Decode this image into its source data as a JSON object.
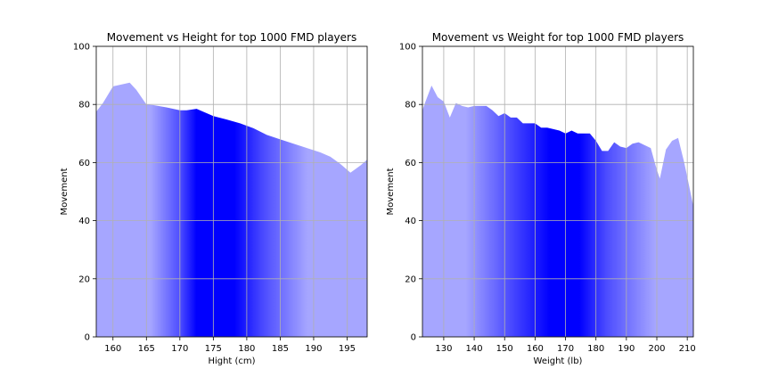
{
  "chart_data": [
    {
      "type": "area",
      "title": "Movement vs Height for top 1000 FMD players",
      "xlabel": "Hight (cm)",
      "ylabel": "Movement",
      "xlim": [
        157.5,
        198
      ],
      "ylim": [
        0,
        100
      ],
      "xticks": [
        160,
        165,
        170,
        175,
        180,
        185,
        190,
        195
      ],
      "yticks": [
        0,
        20,
        40,
        60,
        80,
        100
      ],
      "grid": true,
      "fill_color": "#0000ff",
      "x": [
        157.5,
        158.5,
        160,
        162.5,
        163.5,
        165,
        166,
        168,
        170,
        171,
        172.5,
        173.5,
        175,
        177,
        179,
        181,
        183,
        185,
        187,
        189,
        191,
        192.5,
        194,
        195.5,
        197,
        198
      ],
      "values": [
        77.5,
        80.5,
        86.2,
        87.5,
        85,
        80,
        79.8,
        79,
        78,
        78,
        78.5,
        77.5,
        76,
        74.8,
        73.5,
        71.8,
        69.5,
        68,
        66.5,
        65,
        63.5,
        62,
        59.5,
        56.5,
        59,
        61
      ]
    },
    {
      "type": "area",
      "title": "Movement vs Weight for top 1000 FMD players",
      "xlabel": "Weight (lb)",
      "ylabel": "Movement",
      "xlim": [
        123,
        212
      ],
      "ylim": [
        0,
        100
      ],
      "xticks": [
        130,
        140,
        150,
        160,
        170,
        180,
        190,
        200,
        210
      ],
      "yticks": [
        0,
        20,
        40,
        60,
        80,
        100
      ],
      "grid": true,
      "fill_color": "#0000ff",
      "x": [
        123,
        124,
        126,
        128,
        130,
        132,
        134,
        136,
        138,
        140,
        142,
        144,
        146,
        148,
        150,
        152,
        154,
        156,
        158,
        160,
        162,
        164,
        166,
        168,
        170,
        172,
        174,
        176,
        178,
        180,
        182,
        184,
        186,
        188,
        190,
        192,
        194,
        196,
        198,
        200,
        201,
        203,
        205,
        207,
        209,
        212
      ],
      "values": [
        78,
        81,
        86.5,
        82.5,
        81,
        75.5,
        80.5,
        79.5,
        79,
        79.5,
        79.5,
        79.5,
        78,
        76,
        77,
        75.5,
        75.5,
        73.5,
        73.5,
        73.5,
        72,
        72,
        71.5,
        71,
        70,
        71,
        70,
        70,
        70,
        67.5,
        64,
        64,
        67,
        65.5,
        65,
        66.5,
        67,
        66,
        65,
        57.5,
        54.5,
        64.5,
        67.5,
        68.5,
        60,
        45
      ]
    }
  ]
}
